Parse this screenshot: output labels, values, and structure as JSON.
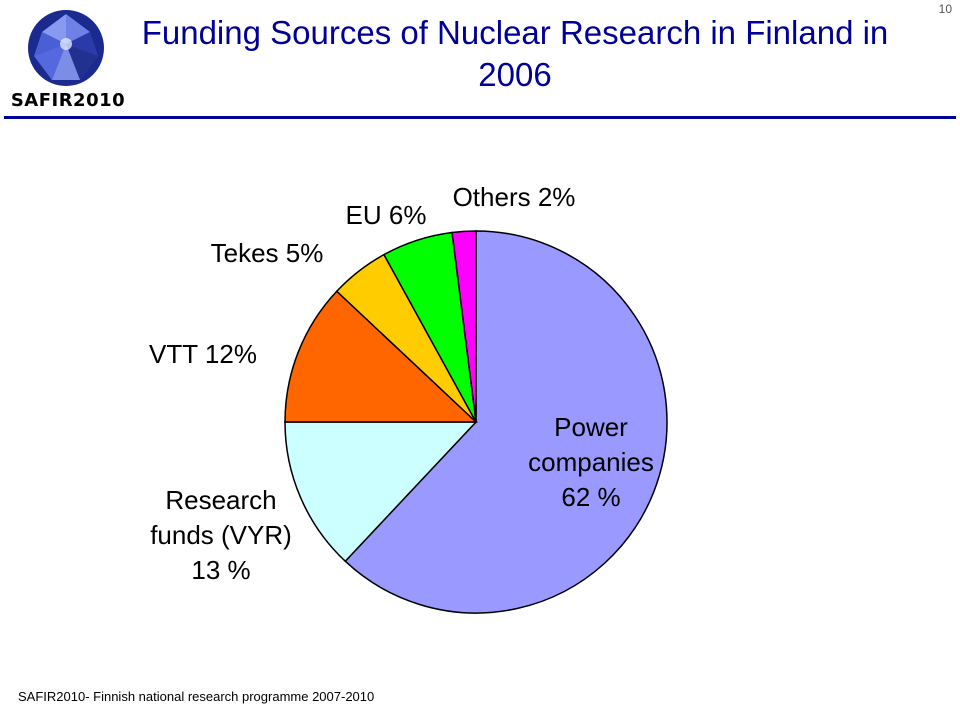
{
  "header": {
    "logo_text": "SAFIR2010",
    "title": "Funding Sources of Nuclear Research in Finland in 2006",
    "page_number": "10",
    "accent_color": "#000099"
  },
  "footer": {
    "text": "SAFIR2010- Finnish national research programme 2007-2010"
  },
  "chart_data": {
    "type": "pie",
    "slices": [
      {
        "label": [
          "Power",
          "companies",
          "62 %"
        ],
        "value": 62,
        "color": "#9999FF"
      },
      {
        "label": [
          "Research",
          "funds (VYR)",
          "13 %"
        ],
        "value": 13,
        "color": "#CCFFFF"
      },
      {
        "label": [
          "VTT 12%"
        ],
        "value": 12,
        "color": "#FF6600"
      },
      {
        "label": [
          "Tekes 5%"
        ],
        "value": 5,
        "color": "#FFCC00"
      },
      {
        "label": [
          "EU 6%"
        ],
        "value": 6,
        "color": "#00FF00"
      },
      {
        "label": [
          "Others 2%"
        ],
        "value": 2,
        "color": "#FF00FF"
      }
    ]
  }
}
